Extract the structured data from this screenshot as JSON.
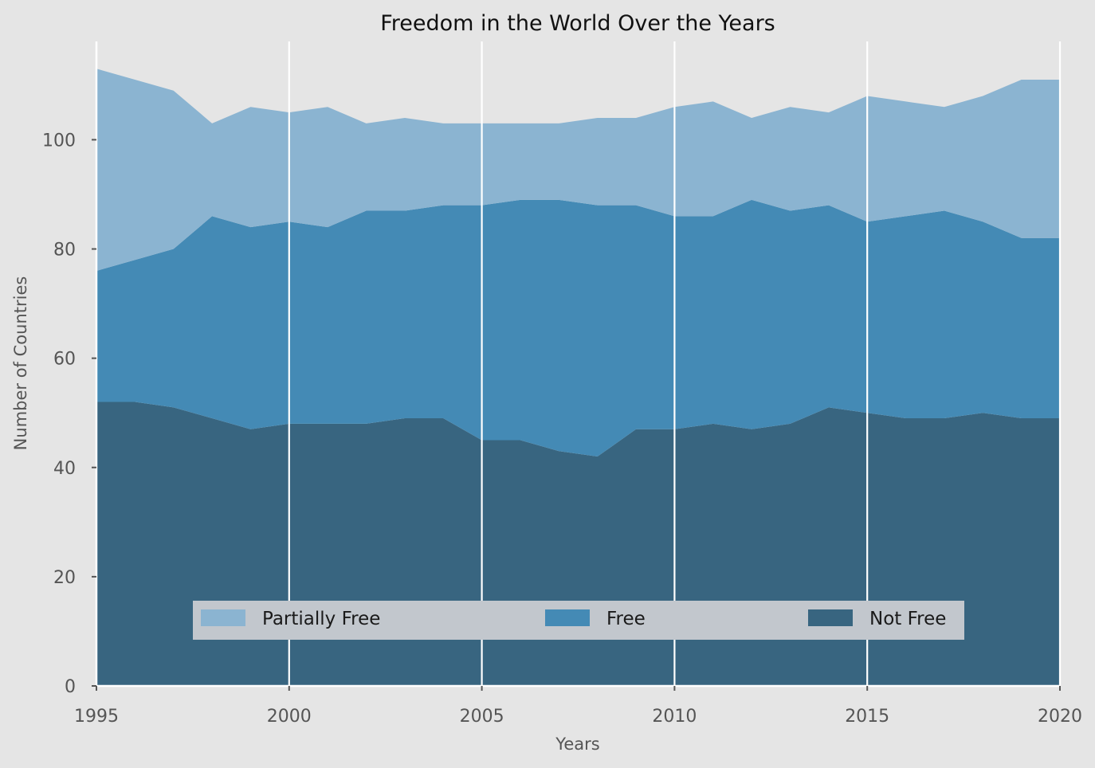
{
  "chart_data": {
    "type": "area",
    "stacked": true,
    "title": "Freedom in the World Over the Years",
    "xlabel": "Years",
    "ylabel": "Number of Countries",
    "x": [
      1995,
      1996,
      1997,
      1998,
      1999,
      2000,
      2001,
      2002,
      2003,
      2004,
      2005,
      2006,
      2007,
      2008,
      2009,
      2010,
      2011,
      2012,
      2013,
      2014,
      2015,
      2016,
      2017,
      2018,
      2019,
      2020
    ],
    "xlim": [
      1995,
      2020
    ],
    "ylim": [
      0,
      118
    ],
    "xticks": [
      1995,
      2000,
      2005,
      2010,
      2015,
      2020
    ],
    "yticks": [
      0,
      20,
      40,
      60,
      80,
      100
    ],
    "grid": "vertical",
    "legend_position": "lower-center",
    "series": [
      {
        "name": "Not Free",
        "color": "#386580",
        "values": [
          52,
          52,
          51,
          49,
          47,
          48,
          48,
          48,
          49,
          49,
          45,
          45,
          43,
          42,
          47,
          47,
          48,
          47,
          48,
          51,
          50,
          49,
          49,
          50,
          49,
          49
        ]
      },
      {
        "name": "Free",
        "color": "#448ab5",
        "values": [
          24,
          26,
          29,
          37,
          37,
          37,
          36,
          39,
          38,
          39,
          43,
          44,
          46,
          46,
          41,
          39,
          38,
          42,
          39,
          37,
          35,
          37,
          38,
          35,
          33,
          33
        ]
      },
      {
        "name": "Partially Free",
        "color": "#8bb4d1",
        "values": [
          37,
          33,
          29,
          17,
          22,
          20,
          22,
          16,
          17,
          15,
          15,
          14,
          14,
          16,
          16,
          20,
          21,
          15,
          19,
          17,
          23,
          21,
          19,
          23,
          29,
          29
        ]
      }
    ],
    "legend_order": [
      "Partially Free",
      "Free",
      "Not Free"
    ]
  }
}
